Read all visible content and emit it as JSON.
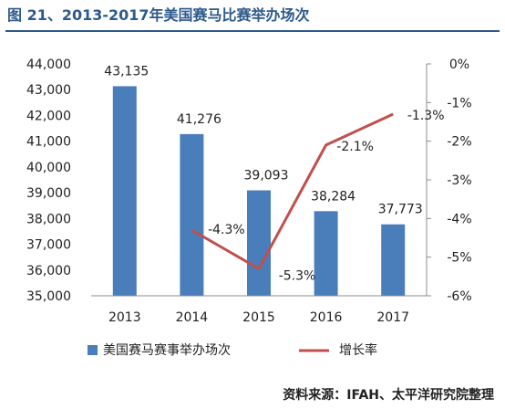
{
  "figure": {
    "title": "图 21、2013-2017年美国赛马比赛举办场次",
    "source": "资料来源：IFAH、太平洋研究院整理"
  },
  "chart_data": {
    "type": "bar",
    "categories": [
      "2013",
      "2014",
      "2015",
      "2016",
      "2017"
    ],
    "series": [
      {
        "name": "美国赛马赛事举办场次",
        "type": "bar",
        "axis": "left",
        "values": [
          43135,
          41276,
          39093,
          38284,
          37773
        ],
        "labels": [
          "43,135",
          "41,276",
          "39,093",
          "38,284",
          "37,773"
        ],
        "color": "#4a7ebb"
      },
      {
        "name": "增长率",
        "type": "line",
        "axis": "right",
        "values": [
          null,
          -4.3,
          -5.3,
          -2.1,
          -1.3
        ],
        "labels": [
          "",
          "-4.3%",
          "-5.3%",
          "-2.1%",
          "-1.3%"
        ],
        "color": "#c0504d"
      }
    ],
    "y_left": {
      "min": 35000,
      "max": 44000,
      "ticks": [
        35000,
        36000,
        37000,
        38000,
        39000,
        40000,
        41000,
        42000,
        43000,
        44000
      ],
      "tick_labels": [
        "35,000",
        "36,000",
        "37,000",
        "38,000",
        "39,000",
        "40,000",
        "41,000",
        "42,000",
        "43,000",
        "44,000"
      ]
    },
    "y_right": {
      "min": -6,
      "max": 0,
      "ticks": [
        0,
        -1,
        -2,
        -3,
        -4,
        -5,
        -6
      ],
      "tick_labels": [
        "0%",
        "-1%",
        "-2%",
        "-3%",
        "-4%",
        "-5%",
        "-6%"
      ]
    },
    "grid": false,
    "legend": "bottom",
    "legend_entries": [
      "美国赛马赛事举办场次",
      "增长率"
    ]
  }
}
